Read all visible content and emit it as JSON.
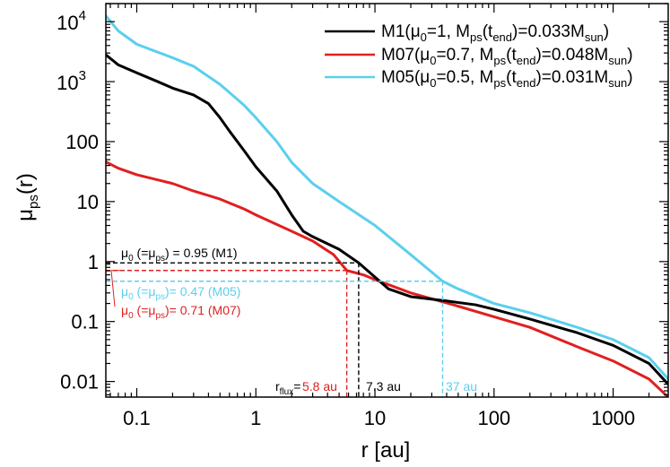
{
  "chart_data": {
    "type": "line",
    "x_scale": "log",
    "y_scale": "log",
    "xlabel": "r [au]",
    "ylabel": {
      "base": "μ",
      "sub": "ps",
      "tail": "(r)"
    },
    "xlim": [
      0.055,
      2900
    ],
    "ylim": [
      0.0055,
      20000
    ],
    "x_ticks": [
      {
        "value": 0.1,
        "label": "0.1"
      },
      {
        "value": 1,
        "label": "1"
      },
      {
        "value": 10,
        "label": "10"
      },
      {
        "value": 100,
        "label": "100"
      },
      {
        "value": 1000,
        "label": "1000"
      }
    ],
    "y_ticks": [
      {
        "value": 0.01,
        "label": "0.01"
      },
      {
        "value": 0.1,
        "label": "0.1"
      },
      {
        "value": 1,
        "label": "1"
      },
      {
        "value": 10,
        "label": "10"
      },
      {
        "value": 100,
        "label": "100"
      }
    ],
    "y_ticks_pow": [
      {
        "value": 1000,
        "base": "10",
        "exp": "3"
      },
      {
        "value": 10000,
        "base": "10",
        "exp": "4"
      }
    ],
    "legend_position": "top-right",
    "series": [
      {
        "name": "M1",
        "color": "#000000",
        "legend": {
          "a": "M1(μ",
          "a_sub": "0",
          "b": "=1, M",
          "b_sub": "ps",
          "c": "(t",
          "c_sub": "end",
          "d": ")=0.033M",
          "d_sub": "sun",
          "e": ")"
        },
        "points": [
          [
            0.055,
            2800
          ],
          [
            0.07,
            1900
          ],
          [
            0.1,
            1400
          ],
          [
            0.15,
            1000
          ],
          [
            0.2,
            780
          ],
          [
            0.3,
            600
          ],
          [
            0.4,
            430
          ],
          [
            0.5,
            250
          ],
          [
            0.6,
            150
          ],
          [
            0.8,
            70
          ],
          [
            1.0,
            38
          ],
          [
            1.5,
            15
          ],
          [
            2.0,
            6
          ],
          [
            2.5,
            3.2
          ],
          [
            3.0,
            2.6
          ],
          [
            5.0,
            1.6
          ],
          [
            7.3,
            0.95
          ],
          [
            10,
            0.55
          ],
          [
            13,
            0.35
          ],
          [
            20,
            0.26
          ],
          [
            40,
            0.22
          ],
          [
            70,
            0.19
          ],
          [
            100,
            0.16
          ],
          [
            200,
            0.11
          ],
          [
            500,
            0.065
          ],
          [
            1000,
            0.04
          ],
          [
            2000,
            0.02
          ],
          [
            2900,
            0.009
          ]
        ]
      },
      {
        "name": "M07",
        "color": "#e02020",
        "legend": {
          "a": "M07(μ",
          "a_sub": "0",
          "b": "=0.7, M",
          "b_sub": "ps",
          "c": "(t",
          "c_sub": "end",
          "d": ")=0.048M",
          "d_sub": "sun",
          "e": ")"
        },
        "points": [
          [
            0.055,
            46
          ],
          [
            0.07,
            36
          ],
          [
            0.1,
            28
          ],
          [
            0.15,
            23
          ],
          [
            0.2,
            20
          ],
          [
            0.3,
            15
          ],
          [
            0.5,
            11
          ],
          [
            0.8,
            7.5
          ],
          [
            1.0,
            6
          ],
          [
            2.0,
            3.2
          ],
          [
            3.0,
            2.2
          ],
          [
            4.5,
            1.3
          ],
          [
            5.8,
            0.71
          ],
          [
            8,
            0.6
          ],
          [
            10,
            0.5
          ],
          [
            20,
            0.3
          ],
          [
            50,
            0.18
          ],
          [
            100,
            0.12
          ],
          [
            200,
            0.08
          ],
          [
            500,
            0.038
          ],
          [
            1000,
            0.022
          ],
          [
            2000,
            0.011
          ],
          [
            2900,
            0.0055
          ]
        ]
      },
      {
        "name": "M05",
        "color": "#5bcfee",
        "legend": {
          "a": "M05(μ",
          "a_sub": "0",
          "b": "=0.5, M",
          "b_sub": "ps",
          "c": "(t",
          "c_sub": "end",
          "d": ")=0.031M",
          "d_sub": "sun",
          "e": ")"
        },
        "points": [
          [
            0.055,
            12500
          ],
          [
            0.07,
            7000
          ],
          [
            0.1,
            4200
          ],
          [
            0.2,
            2500
          ],
          [
            0.3,
            1800
          ],
          [
            0.5,
            900
          ],
          [
            0.8,
            400
          ],
          [
            1.0,
            250
          ],
          [
            1.5,
            100
          ],
          [
            2.0,
            45
          ],
          [
            3.0,
            20
          ],
          [
            5.0,
            10
          ],
          [
            10,
            4
          ],
          [
            20,
            1.3
          ],
          [
            37,
            0.47
          ],
          [
            50,
            0.35
          ],
          [
            100,
            0.2
          ],
          [
            200,
            0.14
          ],
          [
            500,
            0.08
          ],
          [
            1000,
            0.05
          ],
          [
            2000,
            0.025
          ],
          [
            2900,
            0.011
          ]
        ]
      }
    ],
    "annotations": [
      {
        "id": "M1",
        "mu": 0.95,
        "r": 7.3,
        "color": "#000000",
        "pre": "μ",
        "sub": "0",
        "mid": " (=μ",
        "sub2": "ps",
        "post": ") = 0.95 (M1)",
        "r_label": "7.3 au"
      },
      {
        "id": "M07",
        "mu": 0.71,
        "r": 5.8,
        "color": "#e02020",
        "pre": "μ",
        "sub": "0",
        "mid": " (=μ",
        "sub2": "ps",
        "post": ")= 0.71 (M07)",
        "r_label": "5.8 au"
      },
      {
        "id": "M05",
        "mu": 0.47,
        "r": 37,
        "color": "#5bcfee",
        "pre": "μ",
        "sub": "0",
        "mid": " (=μ",
        "sub2": "ps",
        "post": ")= 0.47 (M05)",
        "r_label": "37 au"
      }
    ],
    "rflux_label": {
      "base": "r",
      "sub": "flux",
      "tail": "="
    }
  }
}
